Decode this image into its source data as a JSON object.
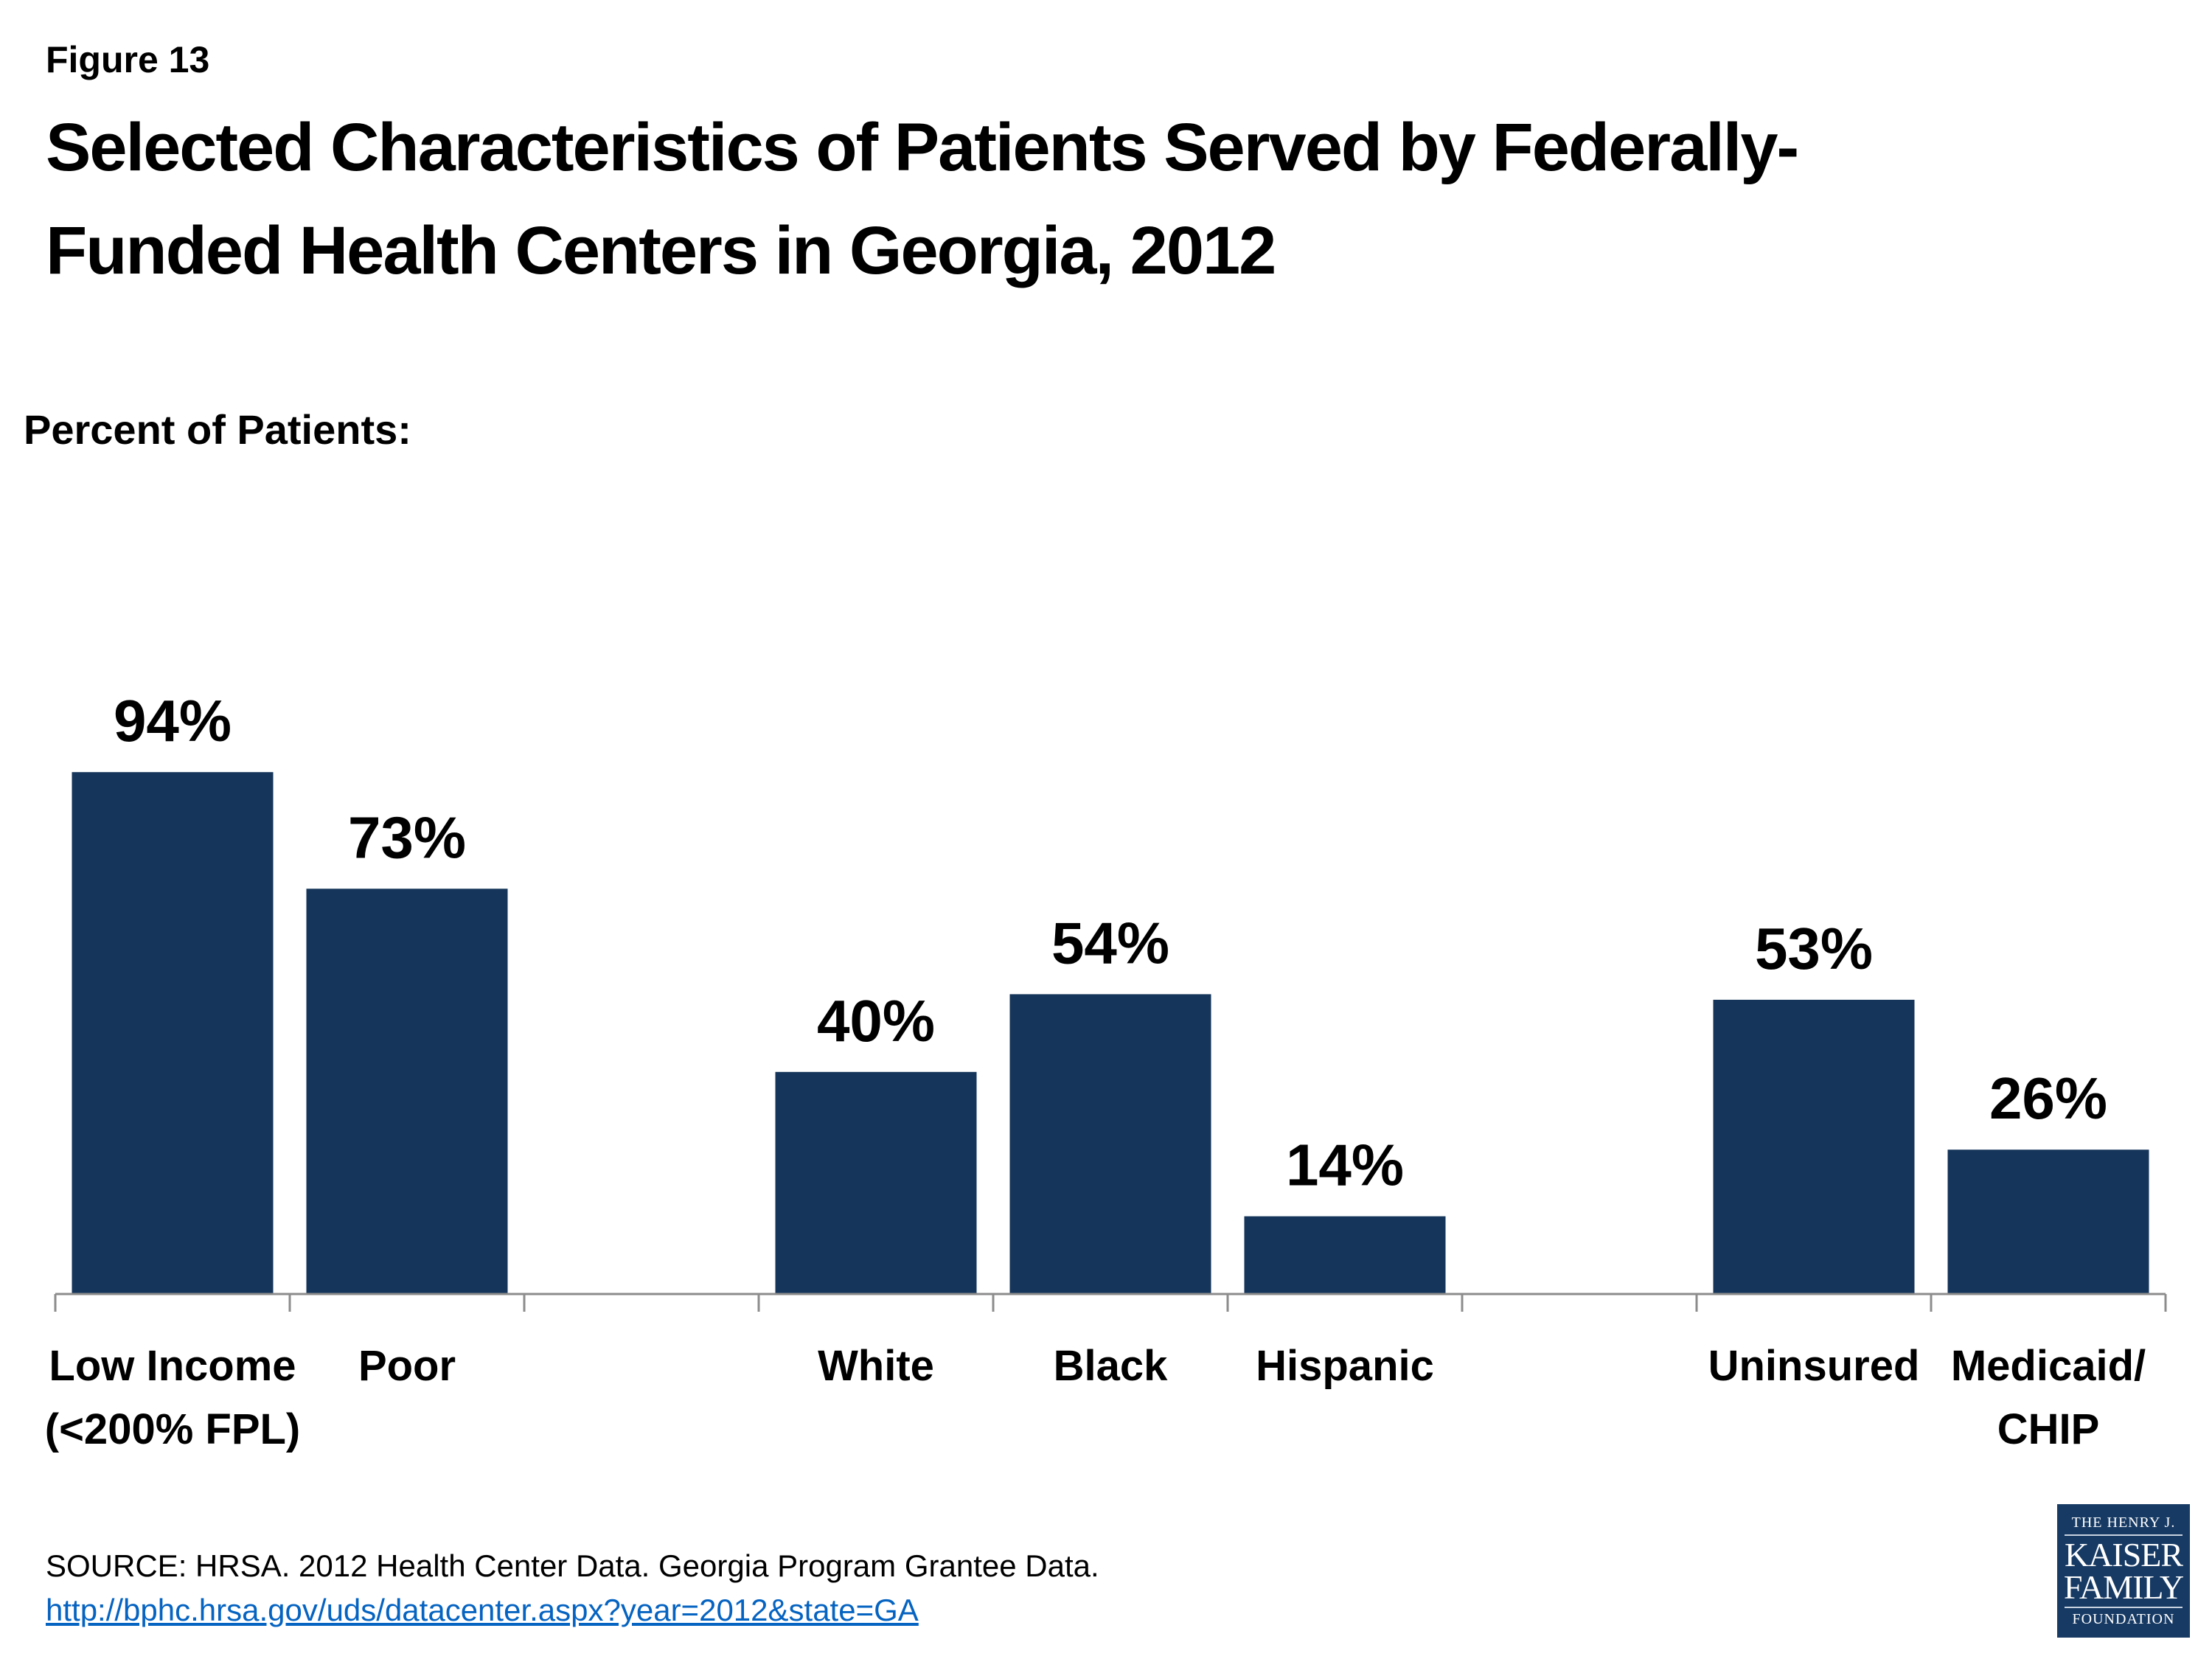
{
  "figure_label": "Figure 13",
  "title_lines": [
    "Selected Characteristics of Patients Served by Federally-",
    "Funded Health Centers in Georgia, 2012"
  ],
  "source": "SOURCE: HRSA. 2012 Health Center Data. Georgia Program Grantee Data.",
  "source_link": "http://bphc.hrsa.gov/uds/datacenter.aspx?year=2012&state=GA",
  "logo": {
    "line1": "THE HENRY J.",
    "line2": "KAISER",
    "line3": "FAMILY",
    "line4": "FOUNDATION"
  },
  "colors": {
    "bar": "#15355a",
    "axis": "#8c8c8c",
    "link": "#0563c1"
  },
  "chart_data": {
    "type": "bar",
    "title": "Selected Characteristics of Patients Served by Federally-Funded Health Centers in Georgia, 2012",
    "ylabel": "Percent of Patients:",
    "xlabel": "",
    "ylim": [
      0,
      100
    ],
    "grid": false,
    "categories": [
      [
        "Low Income",
        "(<200% FPL)"
      ],
      [
        "Poor"
      ],
      [],
      [
        "White"
      ],
      [
        "Black"
      ],
      [
        "Hispanic"
      ],
      [],
      [
        "Uninsured"
      ],
      [
        "Medicaid/",
        "CHIP"
      ]
    ],
    "values": [
      94,
      73,
      null,
      40,
      54,
      14,
      null,
      53,
      26
    ],
    "data_labels": [
      "94%",
      "73%",
      "",
      "40%",
      "54%",
      "14%",
      "",
      "53%",
      "26%"
    ]
  }
}
